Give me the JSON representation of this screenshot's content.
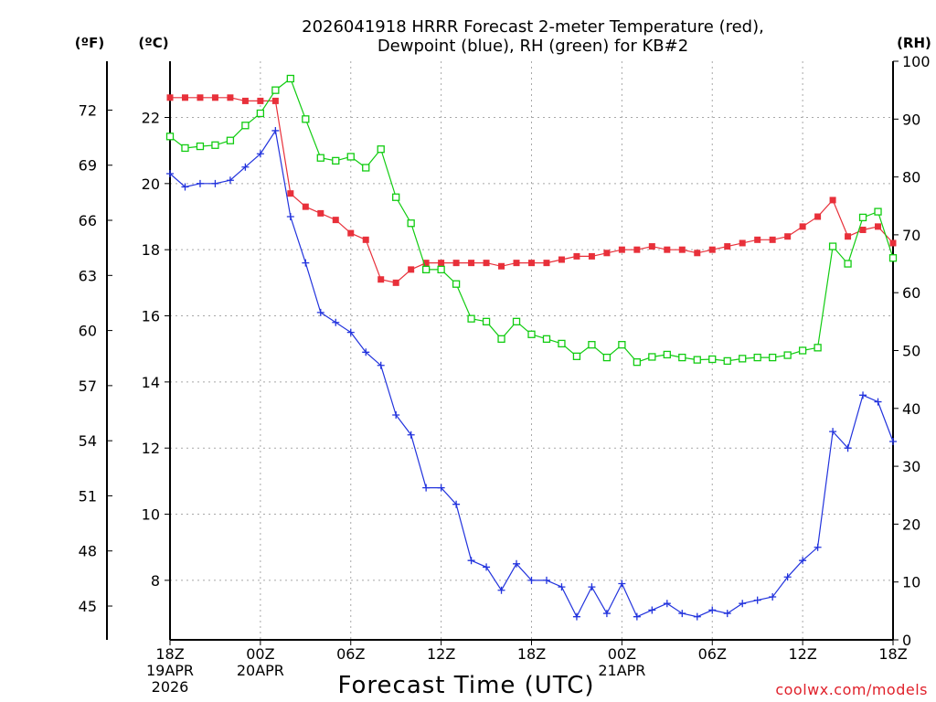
{
  "header": {
    "title_line1": "2026041918 HRRR Forecast 2-meter Temperature (red),",
    "title_line2": "Dewpoint (blue), RH (green) for KB#2",
    "unit_f": "(ºF)",
    "unit_c": "(ºC)",
    "unit_rh": "(RH)"
  },
  "footer": {
    "xlabel": "Forecast Time (UTC)",
    "credit": "coolwx.com/models"
  },
  "colors": {
    "temperature": "#e8303a",
    "dewpoint": "#2233dd",
    "rh": "#11cc11"
  },
  "chart_data": {
    "type": "line",
    "title": "2026041918 HRRR Forecast 2-meter Temperature (red), Dewpoint (blue), RH (green) for KB#2",
    "xlabel": "Forecast Time (UTC)",
    "x_hours": [
      0,
      1,
      2,
      3,
      4,
      5,
      6,
      7,
      8,
      9,
      10,
      11,
      12,
      13,
      14,
      15,
      16,
      17,
      18,
      19,
      20,
      21,
      22,
      23,
      24,
      25,
      26,
      27,
      28,
      29,
      30,
      31,
      32,
      33,
      34,
      35,
      36,
      37,
      38,
      39,
      40,
      41,
      42,
      43,
      44,
      45,
      46,
      47,
      48
    ],
    "xlim": [
      0,
      48
    ],
    "x_ticks": [
      {
        "hour": 0,
        "lines": [
          "18Z",
          "19APR",
          "2026"
        ]
      },
      {
        "hour": 6,
        "lines": [
          "00Z",
          "20APR"
        ]
      },
      {
        "hour": 12,
        "lines": [
          "06Z"
        ]
      },
      {
        "hour": 18,
        "lines": [
          "12Z"
        ]
      },
      {
        "hour": 24,
        "lines": [
          "18Z"
        ]
      },
      {
        "hour": 30,
        "lines": [
          "00Z",
          "21APR"
        ]
      },
      {
        "hour": 36,
        "lines": [
          "06Z"
        ]
      },
      {
        "hour": 42,
        "lines": [
          "12Z"
        ]
      },
      {
        "hour": 48,
        "lines": [
          "18Z"
        ]
      }
    ],
    "y_celsius": {
      "ylim": [
        6.2,
        23.7
      ],
      "ticks": [
        "8",
        "10",
        "12",
        "14",
        "16",
        "18",
        "20",
        "22"
      ]
    },
    "y_fahrenheit": {
      "ticks": [
        "45",
        "48",
        "51",
        "54",
        "57",
        "60",
        "63",
        "66",
        "69",
        "72"
      ]
    },
    "y_rh": {
      "ylim": [
        0,
        100
      ],
      "ticks": [
        "0",
        "10",
        "20",
        "30",
        "40",
        "50",
        "60",
        "70",
        "80",
        "90",
        "100"
      ]
    },
    "series": [
      {
        "name": "Temperature (°C)",
        "color": "#e8303a",
        "marker": "filled-square",
        "values": [
          22.6,
          22.6,
          22.6,
          22.6,
          22.6,
          22.5,
          22.5,
          22.5,
          19.7,
          19.3,
          19.1,
          18.9,
          18.5,
          18.3,
          17.1,
          17.0,
          17.4,
          17.6,
          17.6,
          17.6,
          17.6,
          17.6,
          17.5,
          17.6,
          17.6,
          17.6,
          17.7,
          17.8,
          17.8,
          17.9,
          18.0,
          18.0,
          18.1,
          18.0,
          18.0,
          17.9,
          18.0,
          18.1,
          18.2,
          18.3,
          18.3,
          18.4,
          18.7,
          19.0,
          19.5,
          18.4,
          18.6,
          18.7,
          18.2
        ]
      },
      {
        "name": "Dewpoint (°C)",
        "color": "#2233dd",
        "marker": "plus",
        "values": [
          20.3,
          19.9,
          20.0,
          20.0,
          20.1,
          20.5,
          20.9,
          21.6,
          19.0,
          17.6,
          16.1,
          15.8,
          15.5,
          14.9,
          14.5,
          13.0,
          12.4,
          10.8,
          10.8,
          10.3,
          8.6,
          8.4,
          7.7,
          8.5,
          8.0,
          8.0,
          7.8,
          6.9,
          7.8,
          7.0,
          7.9,
          6.9,
          7.1,
          7.3,
          7.0,
          6.9,
          7.1,
          7.0,
          7.3,
          7.4,
          7.5,
          8.1,
          8.6,
          9.0,
          12.5,
          12.0,
          13.6,
          13.4,
          12.2
        ]
      },
      {
        "name": "RH (%)",
        "color": "#11cc11",
        "marker": "open-square",
        "values": [
          87.0,
          85.0,
          85.3,
          85.5,
          86.3,
          88.9,
          91.0,
          95.0,
          97.0,
          90.0,
          83.3,
          82.8,
          83.5,
          81.6,
          84.8,
          76.5,
          72.0,
          64.0,
          64.0,
          61.5,
          55.5,
          55.0,
          52.0,
          55.0,
          52.8,
          52.0,
          51.2,
          49.0,
          51.0,
          48.8,
          51.0,
          48.0,
          48.9,
          49.3,
          48.8,
          48.4,
          48.5,
          48.2,
          48.6,
          48.8,
          48.8,
          49.2,
          50.0,
          50.5,
          68.0,
          65.0,
          73.0,
          74.0,
          66.0
        ]
      }
    ]
  }
}
